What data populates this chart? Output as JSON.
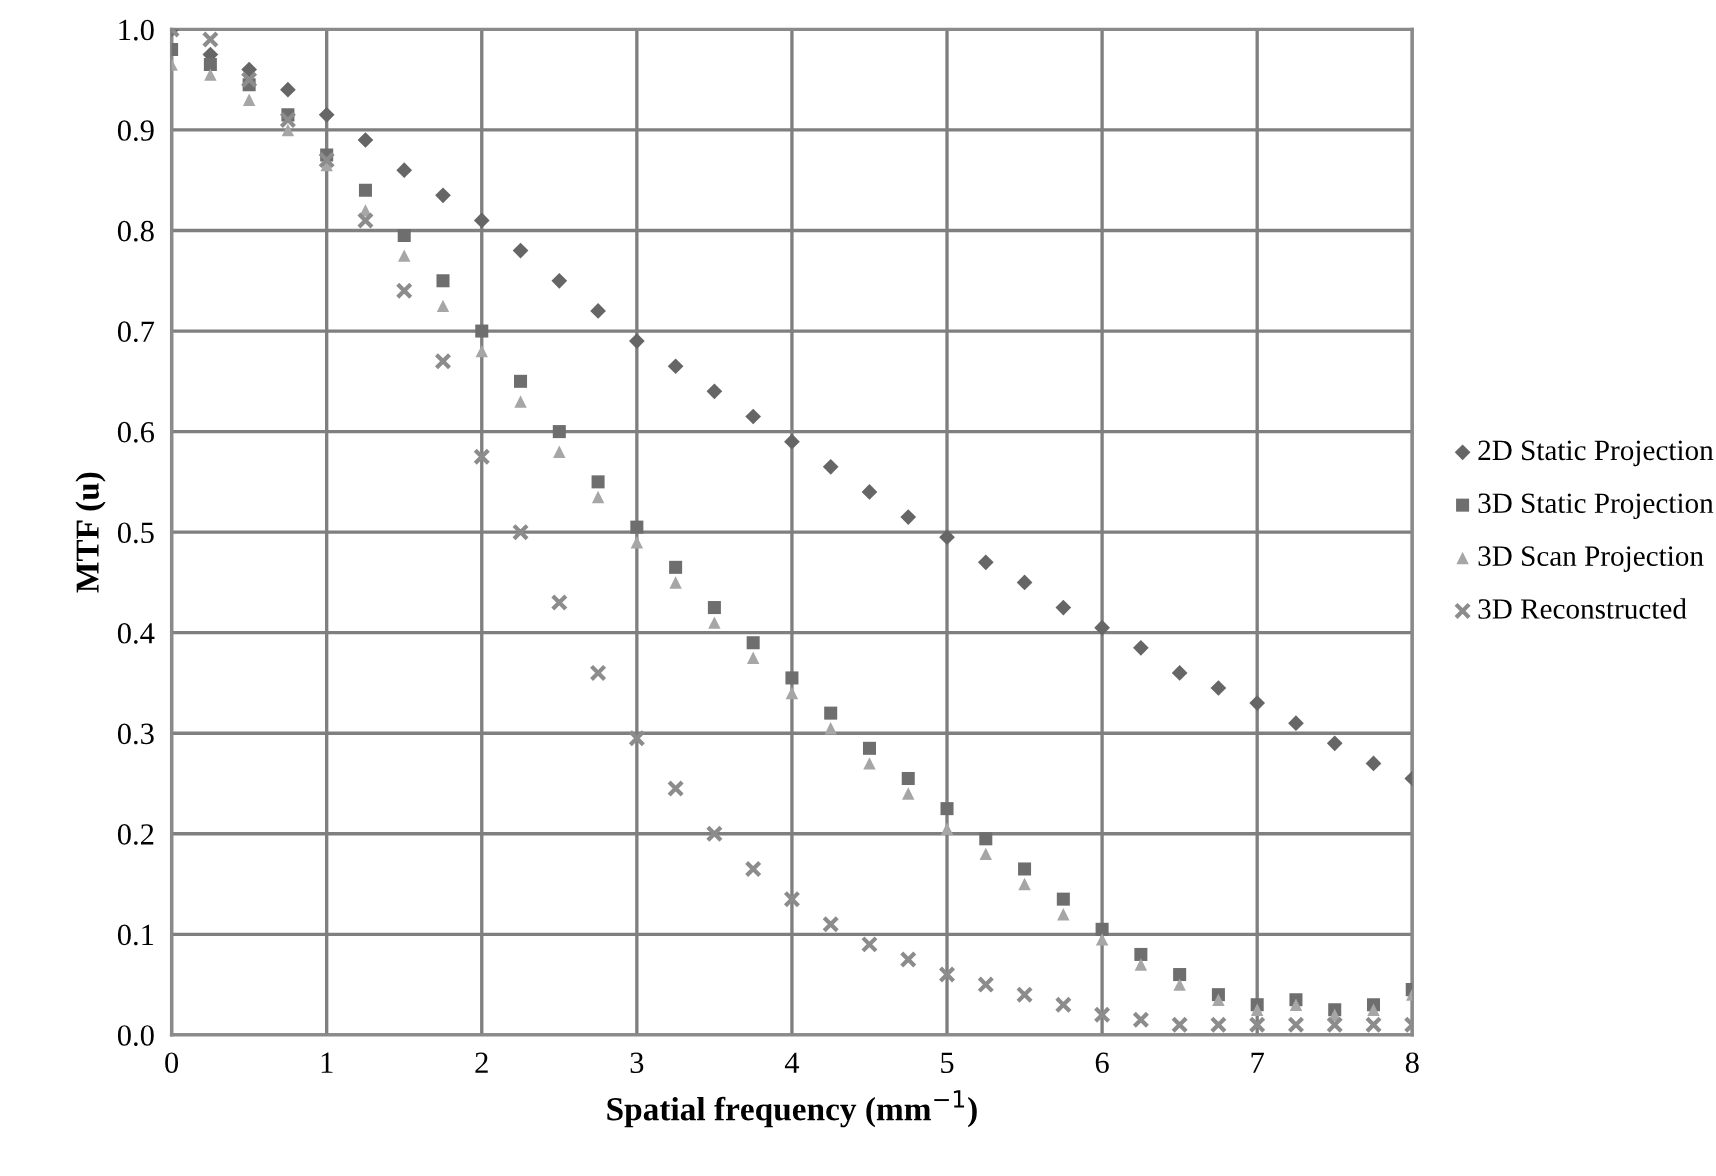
{
  "chart_data": {
    "type": "scatter",
    "xlabel": "Spatial frequency (mm$^{−1}$)",
    "ylabel": "MTF (u)",
    "x": [
      0,
      0.25,
      0.5,
      0.75,
      1,
      1.25,
      1.5,
      1.75,
      2,
      2.25,
      2.5,
      2.75,
      3,
      3.25,
      3.5,
      3.75,
      4,
      4.25,
      4.5,
      4.75,
      5,
      5.25,
      5.5,
      5.75,
      6,
      6.25,
      6.5,
      6.75,
      7,
      7.25,
      7.5,
      7.75,
      8
    ],
    "series": [
      {
        "name": "2D Static Projection",
        "color": "#666666",
        "marker": "diamond",
        "values": [
          1.0,
          0.975,
          0.96,
          0.94,
          0.915,
          0.89,
          0.86,
          0.835,
          0.81,
          0.78,
          0.75,
          0.72,
          0.69,
          0.665,
          0.64,
          0.615,
          0.59,
          0.565,
          0.54,
          0.515,
          0.495,
          0.47,
          0.45,
          0.425,
          0.405,
          0.385,
          0.36,
          0.345,
          0.33,
          0.31,
          0.29,
          0.27,
          0.255
        ]
      },
      {
        "name": "3D Static Projection",
        "color": "#6e6e6e",
        "marker": "square",
        "values": [
          0.98,
          0.965,
          0.945,
          0.915,
          0.875,
          0.84,
          0.795,
          0.75,
          0.7,
          0.65,
          0.6,
          0.55,
          0.505,
          0.465,
          0.425,
          0.39,
          0.355,
          0.32,
          0.285,
          0.255,
          0.225,
          0.195,
          0.165,
          0.135,
          0.105,
          0.08,
          0.06,
          0.04,
          0.03,
          0.035,
          0.025,
          0.03,
          0.045
        ]
      },
      {
        "name": "3D Scan Projection",
        "color": "#a6a6a6",
        "marker": "triangle",
        "values": [
          0.965,
          0.955,
          0.93,
          0.9,
          0.865,
          0.82,
          0.775,
          0.725,
          0.68,
          0.63,
          0.58,
          0.535,
          0.49,
          0.45,
          0.41,
          0.375,
          0.34,
          0.305,
          0.27,
          0.24,
          0.205,
          0.18,
          0.15,
          0.12,
          0.095,
          0.07,
          0.05,
          0.035,
          0.025,
          0.03,
          0.02,
          0.025,
          0.04
        ]
      },
      {
        "name": "3D Reconstructed",
        "color": "#8c8c8c",
        "marker": "cross",
        "values": [
          1.0,
          0.99,
          0.95,
          0.91,
          0.87,
          0.81,
          0.74,
          0.67,
          0.575,
          0.5,
          0.43,
          0.36,
          0.295,
          0.245,
          0.2,
          0.165,
          0.135,
          0.11,
          0.09,
          0.075,
          0.06,
          0.05,
          0.04,
          0.03,
          0.02,
          0.015,
          0.01,
          0.01,
          0.01,
          0.01,
          0.01,
          0.01,
          0.01
        ]
      }
    ],
    "xlim": [
      0,
      8
    ],
    "xticks": [
      0,
      1,
      2,
      3,
      4,
      5,
      6,
      7,
      8
    ],
    "ylim": [
      0,
      1
    ],
    "yticks": [
      {
        "value": 0,
        "label": "0.0"
      },
      {
        "value": 0.1,
        "label": "0.1"
      },
      {
        "value": 0.2,
        "label": "0.2"
      },
      {
        "value": 0.3,
        "label": "0.3"
      },
      {
        "value": 0.4,
        "label": "0.4"
      },
      {
        "value": 0.5,
        "label": "0.5"
      },
      {
        "value": 0.6,
        "label": "0.6"
      },
      {
        "value": 0.7,
        "label": "0.7"
      },
      {
        "value": 0.8,
        "label": "0.8"
      },
      {
        "value": 0.9,
        "label": "0.9"
      },
      {
        "value": 1,
        "label": "1.0"
      }
    ],
    "grid": true,
    "legend": "right"
  }
}
